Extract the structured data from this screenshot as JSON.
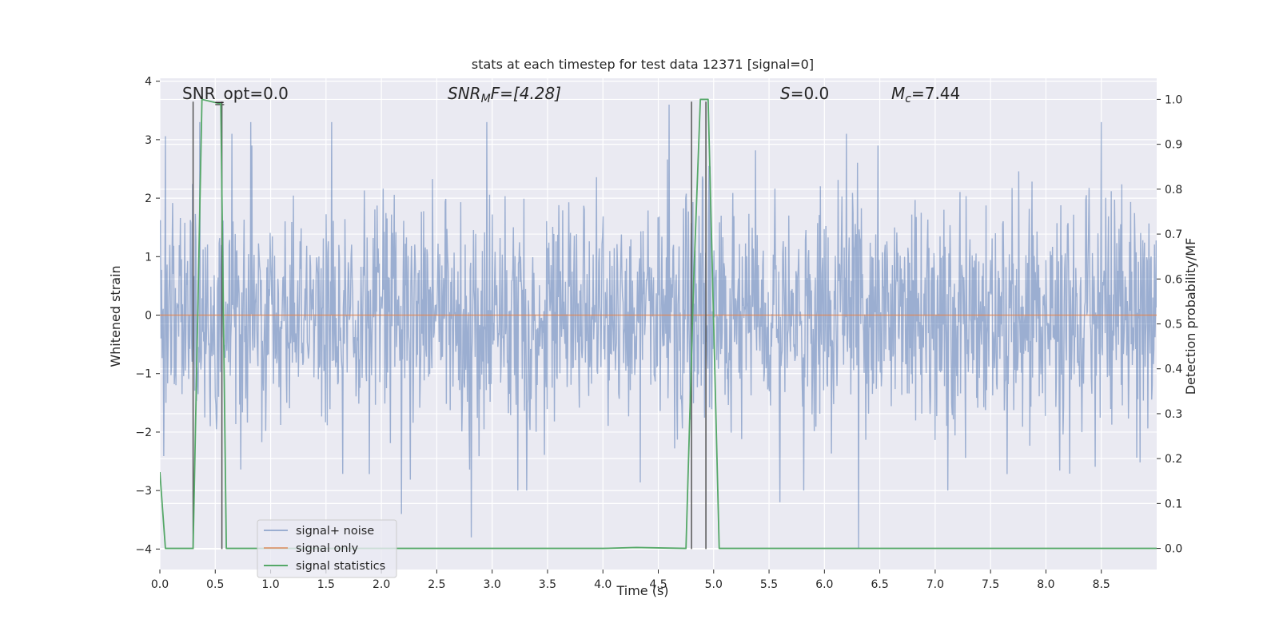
{
  "chart_data": {
    "type": "line",
    "title": "stats at each timestep for test data 12371 [signal=0]",
    "xlabel": "Time (s)",
    "ylabel_left": "Whitened strain",
    "ylabel_right": "Detection probability/MF",
    "xlim": [
      0,
      9.0
    ],
    "ylim_left": [
      -4.35,
      4.05
    ],
    "ylim_right": [
      -0.047,
      1.047
    ],
    "x_ticks": [
      0,
      0.5,
      1,
      1.5,
      2,
      2.5,
      3,
      3.5,
      4,
      4.5,
      5,
      5.5,
      6,
      6.5,
      7,
      7.5,
      8,
      8.5
    ],
    "x_tick_labels": [
      "0.0",
      "0.5",
      "1.0",
      "1.5",
      "2.0",
      "2.5",
      "3.0",
      "3.5",
      "4.0",
      "4.5",
      "5.0",
      "5.5",
      "6.0",
      "6.5",
      "7.0",
      "7.5",
      "8.0",
      "8.5"
    ],
    "y_ticks_left": [
      4,
      3,
      2,
      1,
      0,
      -1,
      -2,
      -3,
      -4
    ],
    "y_tick_labels_left": [
      "4",
      "3",
      "2",
      "1",
      "0",
      "−1",
      "−2",
      "−3",
      "−4"
    ],
    "y_ticks_right": [
      1.0,
      0.9,
      0.8,
      0.7,
      0.6,
      0.5,
      0.4,
      0.3,
      0.2,
      0.1,
      0.0
    ],
    "y_tick_labels_right": [
      "1.0",
      "0.9",
      "0.8",
      "0.7",
      "0.6",
      "0.5",
      "0.4",
      "0.3",
      "0.2",
      "0.1",
      "0.0"
    ],
    "grid": true,
    "legend_position": "lower-left",
    "annotations": {
      "snr_opt": "SNR_opt=0.0",
      "snr_mf_main": "SNR",
      "snr_mf_sub": "M",
      "snr_mf_tail": "F=[4.28]",
      "s_main": "S",
      "s_tail": "=0.0",
      "mc_main": "M",
      "mc_sub": "c",
      "mc_tail": "=7.44"
    },
    "series": [
      {
        "name": "signal+ noise",
        "color": "#4c72b0",
        "axis": "left",
        "style": "dense noise",
        "n_samples": 1800,
        "envelope": {
          "typical_range": [
            -2.0,
            2.0
          ],
          "max": 3.7,
          "min": -4.0
        },
        "peaks": [
          [
            0.05,
            3.06
          ],
          [
            0.36,
            3.3
          ],
          [
            0.65,
            3.1
          ],
          [
            0.82,
            3.3
          ],
          [
            1.55,
            3.3
          ],
          [
            2.95,
            3.3
          ],
          [
            4.6,
            3.6
          ],
          [
            6.2,
            3.1
          ],
          [
            8.5,
            3.3
          ]
        ],
        "troughs": [
          [
            2.18,
            -3.4
          ],
          [
            2.81,
            -3.8
          ],
          [
            5.6,
            -3.2
          ],
          [
            6.31,
            -4.0
          ]
        ]
      },
      {
        "name": "signal only",
        "color": "#dd8452",
        "axis": "left",
        "x": [
          0,
          9.0
        ],
        "y": [
          0,
          0
        ]
      },
      {
        "name": "signal statistics",
        "color": "#55a868",
        "axis": "right",
        "x": [
          0,
          0.05,
          0.1,
          0.3,
          0.38,
          0.55,
          0.6,
          0.65,
          0.7,
          4.0,
          4.3,
          4.75,
          4.82,
          4.88,
          4.95,
          5.05,
          5.5,
          9.0
        ],
        "y": [
          0.17,
          0.0,
          0.0,
          0.0,
          1.0,
          0.99,
          0.0,
          0.0,
          0.0,
          0.0,
          0.002,
          0.0,
          0.6,
          1.0,
          1.0,
          0.0,
          0.0,
          0.0
        ]
      }
    ],
    "vertical_markers": {
      "color": "#555555",
      "x": [
        0.3,
        0.56,
        4.8,
        4.93
      ],
      "y_range": [
        -4.0,
        3.65
      ]
    },
    "h_marker": {
      "x": [
        0.5,
        0.58
      ],
      "y": 3.6
    }
  }
}
